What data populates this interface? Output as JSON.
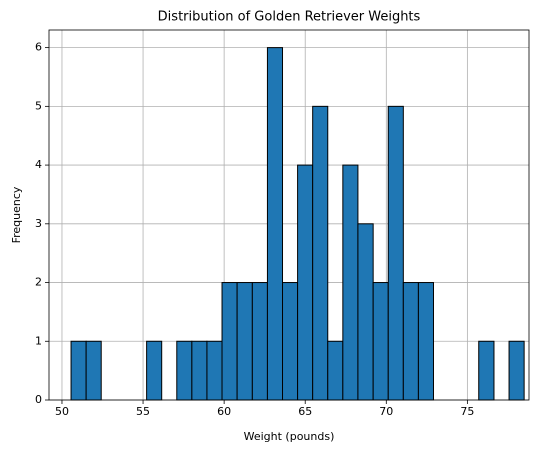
{
  "chart_data": {
    "type": "histogram",
    "title": "Distribution of Golden Retriever Weights",
    "x_label": "Weight (pounds)",
    "y_label": "Frequency",
    "bins": [
      50.56,
      51.49,
      52.42,
      53.35,
      54.29,
      55.22,
      56.15,
      57.08,
      58.01,
      58.94,
      59.87,
      60.8,
      61.74,
      62.67,
      63.6,
      64.53,
      65.46,
      66.39,
      67.32,
      68.25,
      69.19,
      70.12,
      71.05,
      71.98,
      72.91,
      73.84,
      74.77,
      75.7,
      76.64,
      77.57,
      78.5
    ],
    "counts": [
      1,
      1,
      0,
      0,
      0,
      1,
      0,
      1,
      1,
      1,
      2,
      2,
      2,
      6,
      2,
      4,
      5,
      1,
      4,
      3,
      2,
      5,
      2,
      2,
      0,
      0,
      0,
      1,
      0,
      1
    ],
    "color": "#1f77b4",
    "edgecolor": "#000000",
    "xlim": [
      49.2,
      78.8
    ],
    "xticks": [
      50,
      55,
      60,
      65,
      70,
      75
    ],
    "ylim": [
      0,
      6.3
    ],
    "yticks": [
      0,
      1,
      2,
      3,
      4,
      5,
      6
    ],
    "grid": true
  }
}
